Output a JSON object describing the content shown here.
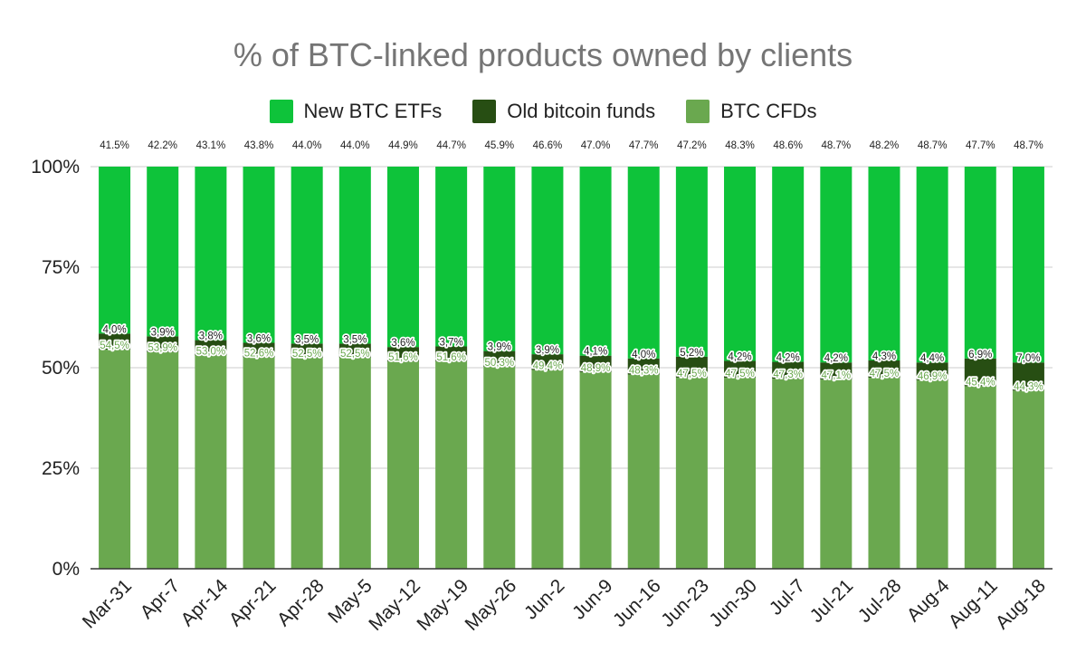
{
  "chart_data": {
    "type": "bar",
    "stacked": true,
    "title": "% of BTC-linked products owned by clients",
    "xlabel": "",
    "ylabel": "",
    "ylim": [
      0,
      100
    ],
    "yticks": [
      "0%",
      "25%",
      "50%",
      "75%",
      "100%"
    ],
    "grid": true,
    "legend_position": "top",
    "categories": [
      "Mar-31",
      "Apr-7",
      "Apr-14",
      "Apr-21",
      "Apr-28",
      "May-5",
      "May-12",
      "May-19",
      "May-26",
      "Jun-2",
      "Jun-9",
      "Jun-16",
      "Jun-23",
      "Jun-30",
      "Jul-7",
      "Jul-21",
      "Jul-28",
      "Aug-4",
      "Aug-11",
      "Aug-18"
    ],
    "series": [
      {
        "name": "BTC CFDs",
        "color": "#6aa84f",
        "values": [
          54.5,
          53.9,
          53.0,
          52.6,
          52.5,
          52.5,
          51.6,
          51.6,
          50.3,
          49.4,
          48.9,
          48.3,
          47.5,
          47.5,
          47.3,
          47.1,
          47.5,
          46.9,
          45.4,
          44.3
        ],
        "labels": [
          "54,5%",
          "53,9%",
          "53,0%",
          "52,6%",
          "52,5%",
          "52,5%",
          "51,6%",
          "51,6%",
          "50,3%",
          "49,4%",
          "48,9%",
          "48,3%",
          "47,5%",
          "47,5%",
          "47,3%",
          "47,1%",
          "47,5%",
          "46,9%",
          "45,4%",
          "44,3%"
        ]
      },
      {
        "name": "Old bitcoin funds",
        "color": "#274e13",
        "values": [
          4.0,
          3.9,
          3.8,
          3.6,
          3.5,
          3.5,
          3.6,
          3.7,
          3.9,
          3.9,
          4.1,
          4.0,
          5.2,
          4.2,
          4.2,
          4.2,
          4.3,
          4.4,
          6.9,
          7.0
        ],
        "labels": [
          "4,0%",
          "3,9%",
          "3,8%",
          "3,6%",
          "3,5%",
          "3,5%",
          "3,6%",
          "3,7%",
          "3,9%",
          "3,9%",
          "4,1%",
          "4,0%",
          "5,2%",
          "4,2%",
          "4,2%",
          "4,2%",
          "4,3%",
          "4,4%",
          "6,9%",
          "7,0%"
        ]
      },
      {
        "name": "New BTC ETFs",
        "color": "#0ec33a",
        "values": [
          41.5,
          42.2,
          43.1,
          43.8,
          44.0,
          44.0,
          44.9,
          44.7,
          45.9,
          46.6,
          47.0,
          47.7,
          47.2,
          48.3,
          48.6,
          48.7,
          48.2,
          48.7,
          47.7,
          48.7
        ],
        "labels": [
          "41.5%",
          "42.2%",
          "43.1%",
          "43.8%",
          "44.0%",
          "44.0%",
          "44.9%",
          "44.7%",
          "45.9%",
          "46.6%",
          "47.0%",
          "47.7%",
          "47.2%",
          "48.3%",
          "48.6%",
          "48.7%",
          "48.2%",
          "48.7%",
          "47.7%",
          "48.7%"
        ]
      }
    ],
    "legend_order": [
      "New BTC ETFs",
      "Old bitcoin funds",
      "BTC CFDs"
    ]
  }
}
